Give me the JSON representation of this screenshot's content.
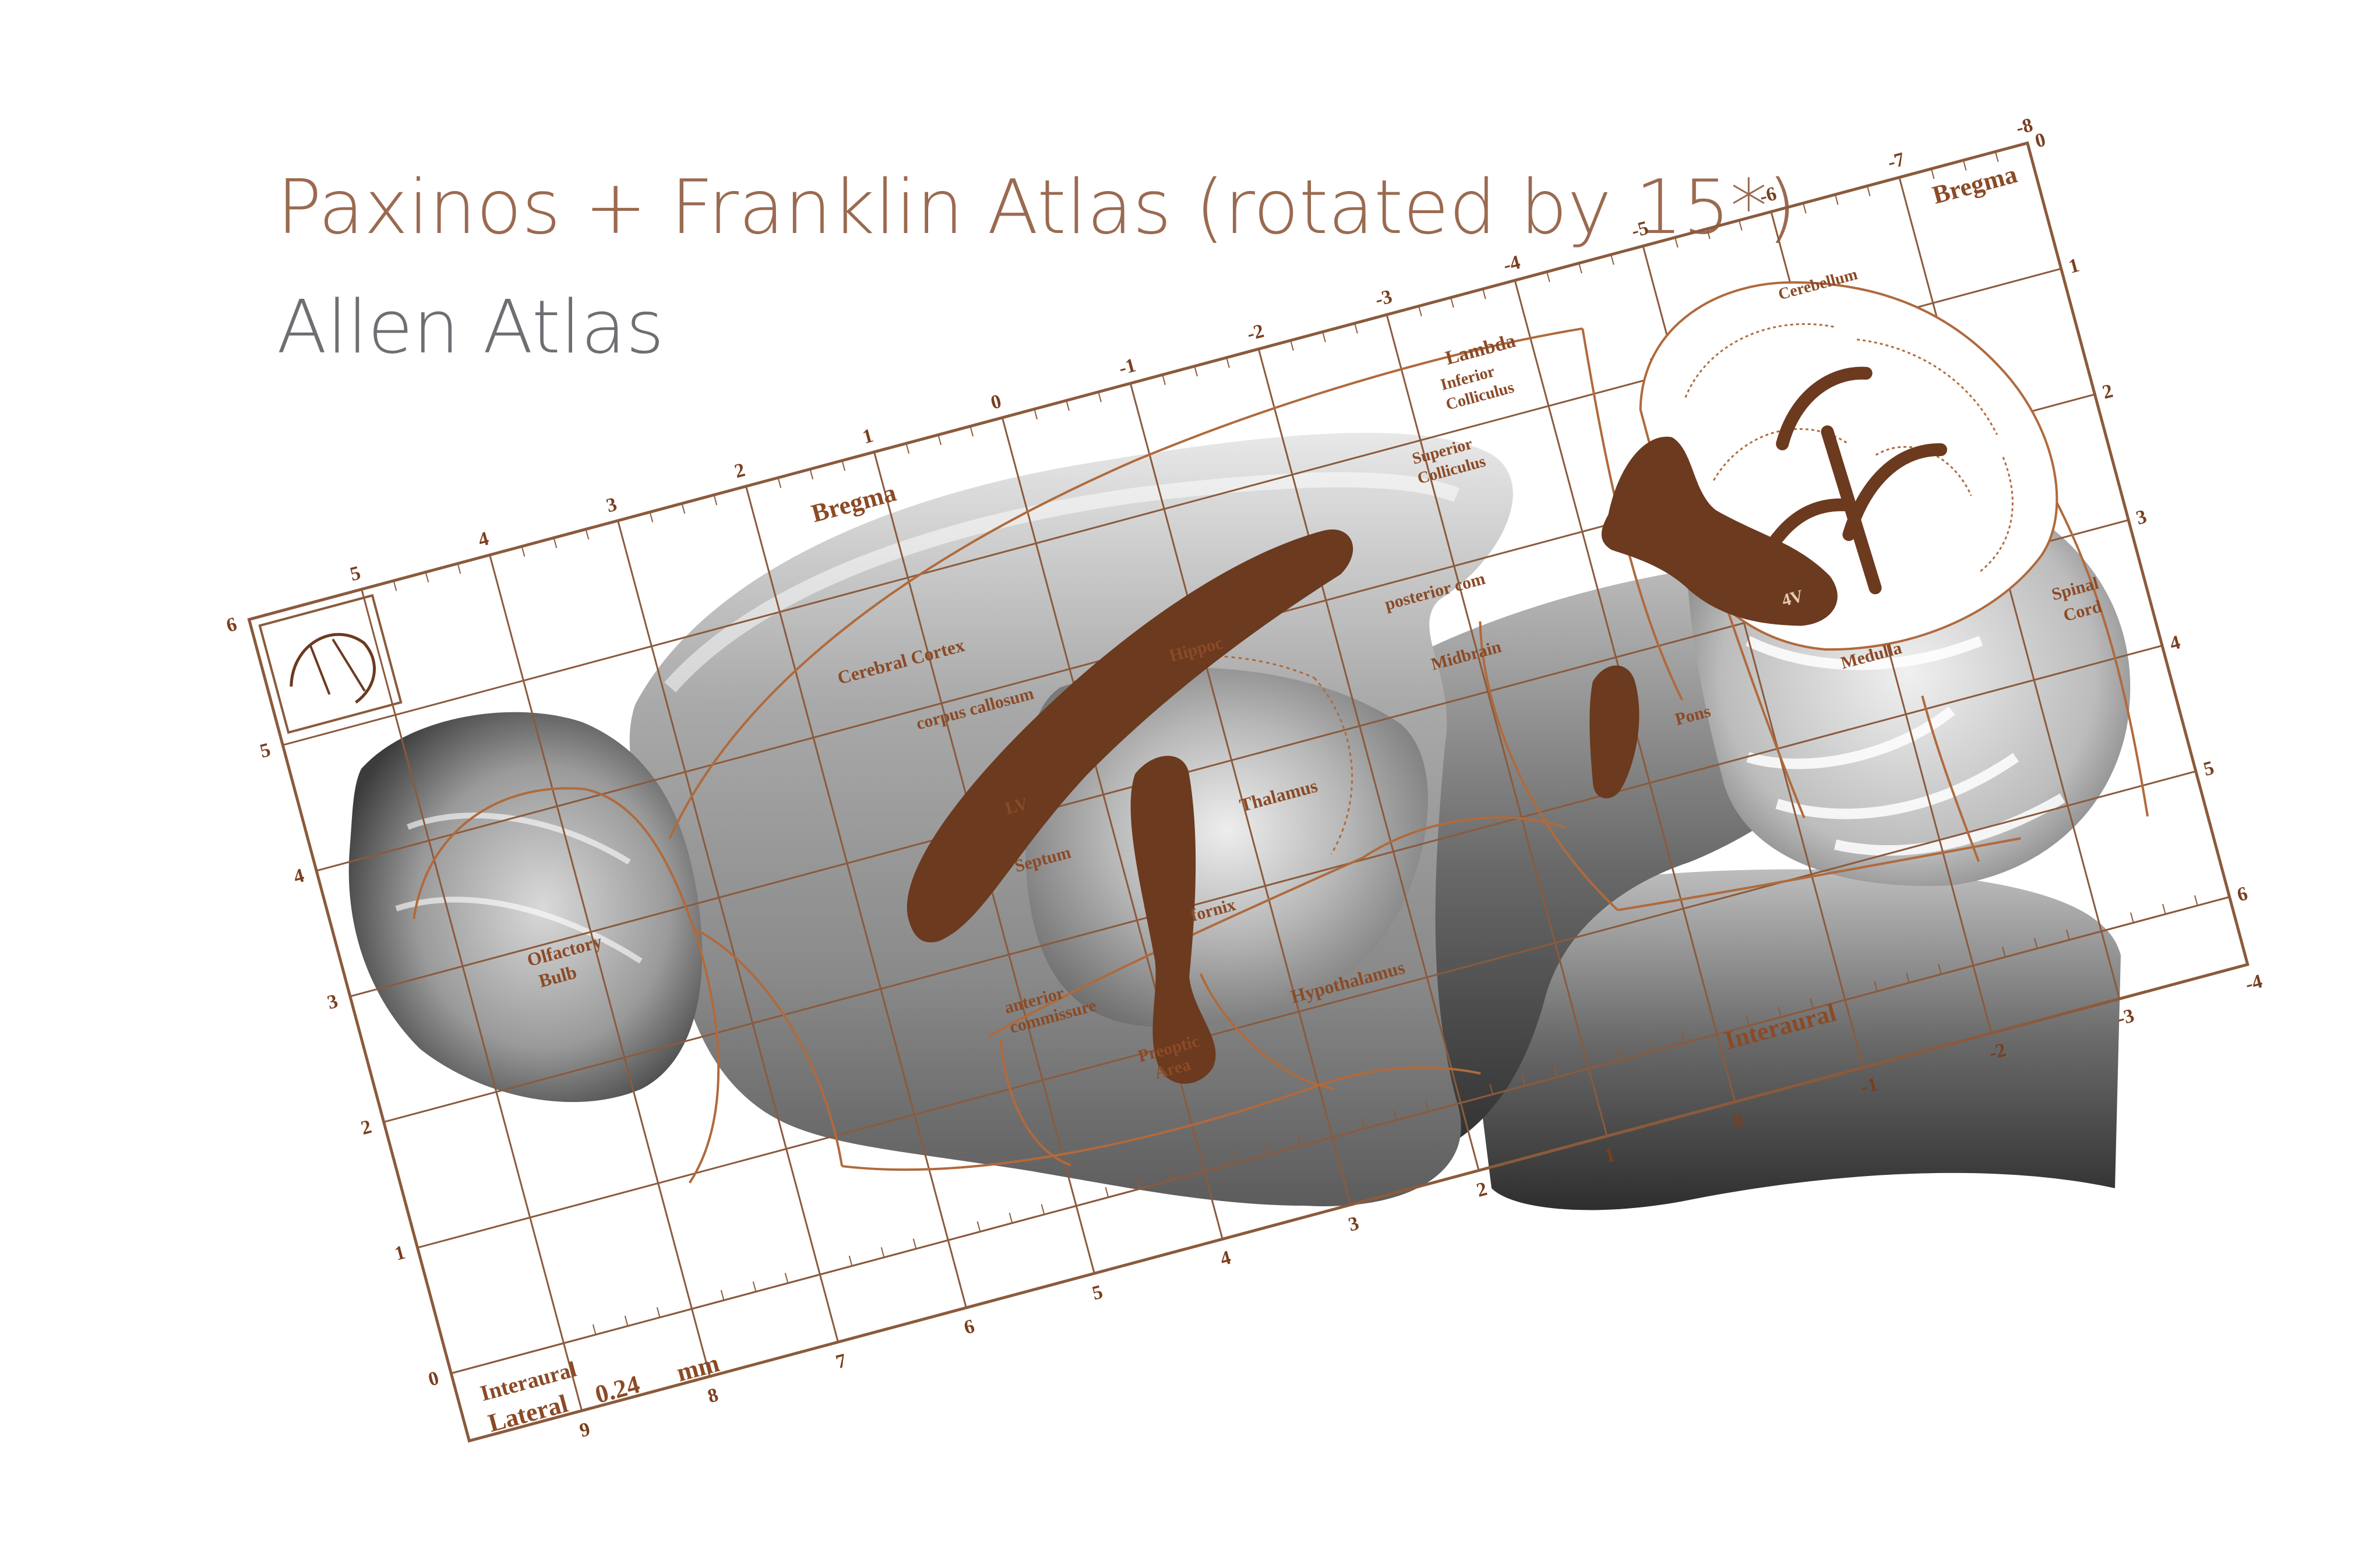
{
  "legend": {
    "paxinos": "Paxinos + Franklin Atlas (rotated by 15*)",
    "allen": "Allen Atlas"
  },
  "colors": {
    "paxinos_text": "#9a6a50",
    "allen_text": "#6d6f73",
    "grid": "#8b5a3c",
    "ventricle": "#6b3a1f"
  },
  "atlas": {
    "rotation_deg": 15,
    "grid": {
      "bregma_top_ticks": [
        "5",
        "4",
        "3",
        "2",
        "1",
        "0",
        "-1",
        "-2",
        "-3",
        "-4",
        "-5",
        "-6",
        "-7",
        "-8"
      ],
      "interaural_bottom_ticks": [
        "9",
        "8",
        "7",
        "6",
        "5",
        "4",
        "3",
        "2",
        "1",
        "0",
        "-1",
        "-2",
        "-3",
        "-4"
      ],
      "left_ticks": [
        "6",
        "5",
        "4",
        "3",
        "2",
        "1",
        "0"
      ],
      "right_ticks": [
        "0",
        "1",
        "2",
        "3",
        "4",
        "5",
        "6"
      ]
    },
    "labels": {
      "bregma_top": "Bregma",
      "bregma_corner": "Bregma",
      "lambda": "Lambda",
      "interaural": "Interaural",
      "interaural_right": "Interaural",
      "lateral": "Lateral",
      "lateral_value": "0.24",
      "unit": "mm"
    },
    "regions": {
      "cerebral_cortex": "Cerebral Cortex",
      "corpus_callosum": "corpus callosum",
      "hippocampus": "Hippoc",
      "lv": "LV",
      "septum": "Septum",
      "thalamus": "Thalamus",
      "fornix": "fornix",
      "anterior_commissure_1": "anterior",
      "anterior_commissure_2": "commissure",
      "preoptic_1": "Preoptic",
      "preoptic_2": "Area",
      "hypothalamus": "Hypothalamus",
      "olfactory_bulb_1": "Olfactory",
      "olfactory_bulb_2": "Bulb",
      "superior_colliculus_1": "Superior",
      "superior_colliculus_2": "Colliculus",
      "inferior_colliculus_1": "Inferior",
      "inferior_colliculus_2": "Colliculus",
      "posterior_commissure": "posterior com",
      "midbrain": "Midbrain",
      "pons": "Pons",
      "medulla": "Medulla",
      "cerebellum": "Cerebellum",
      "fourth_ventricle": "4V",
      "spinal_cord_1": "Spinal",
      "spinal_cord_2": "Cord"
    }
  }
}
